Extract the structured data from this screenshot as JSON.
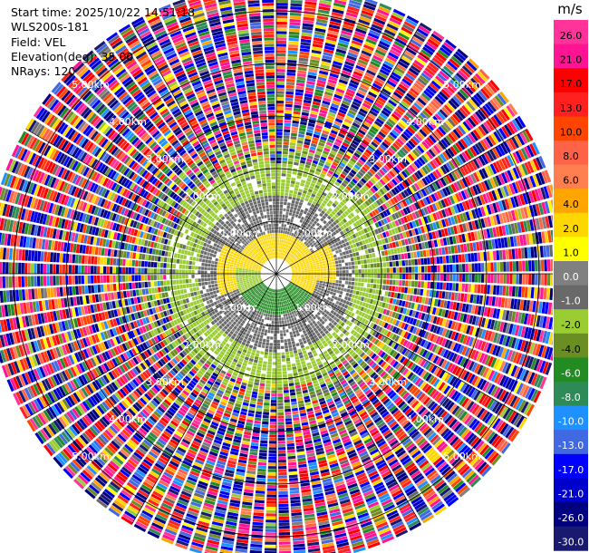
{
  "info": {
    "start_time": "Start time: 2025/10/22 14:51:18",
    "device": "WLS200s-181",
    "field": "Field: VEL",
    "elevation": "Elevation(deg): 35.00",
    "nrays": "NRays: 120"
  },
  "colorbar": {
    "unit": "m/s",
    "labels": [
      "26.0",
      "21.0",
      "17.0",
      "13.0",
      "10.0",
      "8.0",
      "6.0",
      "4.0",
      "2.0",
      "1.0",
      "0.0",
      "-1.0",
      "-2.0",
      "-4.0",
      "-6.0",
      "-8.0",
      "-10.0",
      "-13.0",
      "-17.0",
      "-21.0",
      "-26.0",
      "-30.0"
    ],
    "colors": [
      "#ff3399",
      "#ff1493",
      "#ff0000",
      "#ff2020",
      "#ff4500",
      "#ff6347",
      "#ff7f50",
      "#ffa500",
      "#ffd700",
      "#ffff00",
      "#808080",
      "#696969",
      "#9acd32",
      "#6b8e23",
      "#228b22",
      "#2e8b57",
      "#1e90ff",
      "#4169e1",
      "#0000ff",
      "#0000cd",
      "#000080",
      "#191970"
    ]
  },
  "chart_data": {
    "type": "heatmap",
    "projection": "polar PPI",
    "field": "VEL",
    "unit": "m/s",
    "elevation_deg": 35.0,
    "nrays": 120,
    "range_rings_km": [
      1,
      2,
      3,
      4,
      5
    ],
    "ring_labels": [
      "1.00km",
      "2.00km",
      "3.00km",
      "4.00km",
      "5.00km"
    ],
    "max_range_km": 5.5,
    "color_scale": {
      "bounds": [
        -30,
        -26,
        -21,
        -17,
        -13,
        -10,
        -8,
        -6,
        -4,
        -2,
        -1,
        0,
        1,
        2,
        4,
        6,
        8,
        10,
        13,
        17,
        21,
        26
      ]
    },
    "regions": [
      {
        "range_km": [
          0.3,
          0.75
        ],
        "sector": "north",
        "value_ms": 3.0
      },
      {
        "range_km": [
          0.3,
          0.75
        ],
        "sector": "south",
        "value_ms": -5.0
      },
      {
        "range_km": [
          0.75,
          1.1
        ],
        "sector": "west-north",
        "value_ms": 3.0
      },
      {
        "range_km": [
          0.75,
          2.0
        ],
        "sector": "all",
        "value_ms": -0.5
      },
      {
        "range_km": [
          1.5,
          2.1
        ],
        "sector": "ring",
        "value_ms": -1.5
      },
      {
        "range_km": [
          2.1,
          5.5
        ],
        "sector": "all",
        "value_ms": "noise"
      }
    ]
  }
}
